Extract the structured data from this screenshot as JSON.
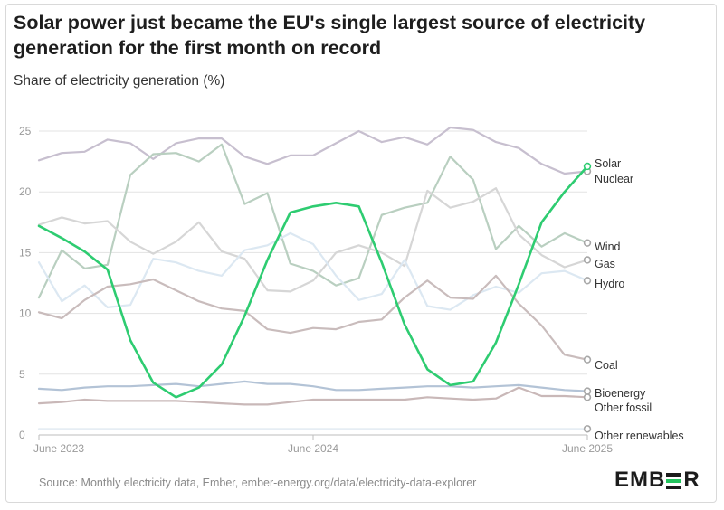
{
  "header": {
    "title_line1": "Solar power just became the EU's single largest source of electricity",
    "title_line2": "generation for the first month on record",
    "subtitle": "Share of electricity generation (%)"
  },
  "footer": {
    "source": "Source: Monthly electricity data, Ember, ember-energy.org/data/electricity-data-explorer",
    "brand_left": "EMB",
    "brand_right": "R"
  },
  "colors": {
    "solar": "#2ecc71",
    "grey_dark": "#9a9a9a",
    "wind": "#b9cfc0",
    "gas": "#d6d6d6",
    "hydro": "#dce8f2",
    "bioenergy": "#b3c3d6",
    "other_fossil": "#c9b8b8",
    "other_renewables": "#e6edf4",
    "nuclear": "#c7bfcf",
    "coal": "#c9bcbc"
  },
  "chart_data": {
    "type": "line",
    "title": "Solar power just became the EU's single largest source of electricity generation for the first month on record",
    "ylabel": "Share of electricity generation (%)",
    "ylim": [
      0,
      25
    ],
    "yticks": [
      "0",
      "5",
      "10",
      "15",
      "20",
      "25"
    ],
    "x": [
      "2023-06",
      "2023-07",
      "2023-08",
      "2023-09",
      "2023-10",
      "2023-11",
      "2023-12",
      "2024-01",
      "2024-02",
      "2024-03",
      "2024-04",
      "2024-05",
      "2024-06",
      "2024-07",
      "2024-08",
      "2024-09",
      "2024-10",
      "2024-11",
      "2024-12",
      "2025-01",
      "2025-02",
      "2025-03",
      "2025-04",
      "2025-05",
      "2025-06"
    ],
    "xticks": [
      {
        "index": 0,
        "label": "June 2023"
      },
      {
        "index": 12,
        "label": "June 2024"
      },
      {
        "index": 24,
        "label": "June 2025"
      }
    ],
    "grid": true,
    "legend": "end-of-line labels, right",
    "series": [
      {
        "name": "Nuclear",
        "color": "#c7bfcf",
        "values": [
          22.6,
          23.2,
          23.3,
          24.3,
          24.0,
          22.7,
          24.0,
          24.4,
          24.4,
          22.9,
          22.3,
          23.0,
          23.0,
          24.0,
          25.0,
          24.1,
          24.5,
          23.9,
          25.3,
          25.1,
          24.1,
          23.6,
          22.3,
          21.5,
          21.7
        ]
      },
      {
        "name": "Wind",
        "color": "#b9cfc0",
        "values": [
          11.3,
          15.2,
          13.7,
          14.0,
          21.4,
          23.1,
          23.2,
          22.5,
          23.9,
          19.0,
          19.9,
          14.1,
          13.5,
          12.3,
          12.9,
          18.1,
          18.7,
          19.1,
          22.9,
          21.0,
          15.3,
          17.2,
          15.5,
          16.6,
          15.8
        ]
      },
      {
        "name": "Gas",
        "color": "#d6d6d6",
        "values": [
          17.3,
          17.9,
          17.4,
          17.6,
          15.9,
          14.9,
          15.9,
          17.5,
          15.1,
          14.5,
          11.9,
          11.8,
          12.7,
          15.0,
          15.6,
          15.0,
          13.9,
          20.1,
          18.7,
          19.2,
          20.3,
          16.5,
          14.8,
          13.8,
          14.4
        ]
      },
      {
        "name": "Hydro",
        "color": "#dce8f2",
        "values": [
          14.2,
          11.0,
          12.3,
          10.5,
          10.7,
          14.5,
          14.2,
          13.5,
          13.1,
          15.2,
          15.6,
          16.6,
          15.7,
          13.1,
          11.1,
          11.6,
          14.4,
          10.6,
          10.3,
          11.5,
          12.2,
          11.7,
          13.3,
          13.5,
          12.7
        ]
      },
      {
        "name": "Coal",
        "color": "#c9bcbc",
        "values": [
          10.1,
          9.6,
          11.1,
          12.2,
          12.4,
          12.8,
          11.9,
          11.0,
          10.4,
          10.2,
          8.7,
          8.4,
          8.8,
          8.7,
          9.3,
          9.5,
          11.3,
          12.7,
          11.3,
          11.2,
          13.1,
          10.8,
          9.0,
          6.6,
          6.2
        ]
      },
      {
        "name": "Bioenergy",
        "color": "#b3c3d6",
        "values": [
          3.8,
          3.7,
          3.9,
          4.0,
          4.0,
          4.1,
          4.2,
          4.0,
          4.2,
          4.4,
          4.2,
          4.2,
          4.0,
          3.7,
          3.7,
          3.8,
          3.9,
          4.0,
          4.0,
          3.9,
          4.0,
          4.1,
          3.9,
          3.7,
          3.6
        ]
      },
      {
        "name": "Other fossil",
        "color": "#c9b8b8",
        "values": [
          2.6,
          2.7,
          2.9,
          2.8,
          2.8,
          2.8,
          2.8,
          2.7,
          2.6,
          2.5,
          2.5,
          2.7,
          2.9,
          2.9,
          2.9,
          2.9,
          2.9,
          3.1,
          3.0,
          2.9,
          3.0,
          3.9,
          3.2,
          3.2,
          3.1
        ]
      },
      {
        "name": "Other renewables",
        "color": "#e6edf4",
        "values": [
          0.5,
          0.5,
          0.5,
          0.5,
          0.5,
          0.5,
          0.5,
          0.5,
          0.5,
          0.5,
          0.5,
          0.5,
          0.5,
          0.5,
          0.5,
          0.5,
          0.5,
          0.5,
          0.5,
          0.5,
          0.5,
          0.5,
          0.5,
          0.5,
          0.5
        ]
      },
      {
        "name": "Solar",
        "color": "#2ecc71",
        "values": [
          17.2,
          16.2,
          15.1,
          13.6,
          7.8,
          4.3,
          3.1,
          3.9,
          5.8,
          9.8,
          14.4,
          18.3,
          18.8,
          19.1,
          18.8,
          14.2,
          9.1,
          5.4,
          4.1,
          4.4,
          7.6,
          12.4,
          17.5,
          20.0,
          22.1
        ]
      }
    ]
  }
}
